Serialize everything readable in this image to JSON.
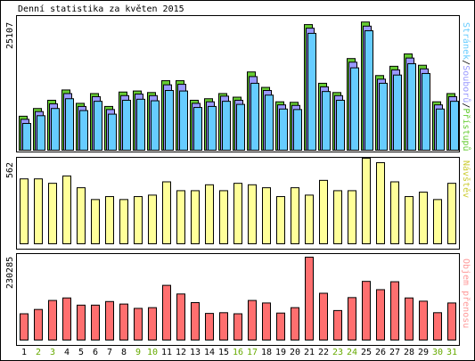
{
  "title": "Denní statistika za květen 2015",
  "colors": {
    "background": "#ffffff",
    "border": "#000000",
    "pages": "#66ccff",
    "files": "#9999ff",
    "hits": "#66cc33",
    "visits": "#ffff99",
    "bandwidth": "#ff6f6f",
    "weekday_label": "#000000",
    "weekend_label": "#66aa00"
  },
  "panels": {
    "top": {
      "max_label": "25107",
      "legend": [
        {
          "text": "Stránek",
          "color": "#66ccff"
        },
        {
          "text": "/",
          "color": "#000000"
        },
        {
          "text": "Souborů",
          "color": "#9999ff"
        },
        {
          "text": "/",
          "color": "#000000"
        },
        {
          "text": "Přístupů",
          "color": "#66cc33"
        }
      ]
    },
    "middle": {
      "max_label": "562",
      "legend": [
        {
          "text": "Návštěv",
          "color": "#cccc33"
        }
      ]
    },
    "bottom": {
      "max_label": "230285",
      "legend": [
        {
          "text": "Objem přenosu",
          "color": "#ff9999"
        }
      ]
    }
  },
  "chart_data": {
    "type": "bar",
    "title": "Denní statistika za květen 2015",
    "categories": [
      "1",
      "2",
      "3",
      "4",
      "5",
      "6",
      "7",
      "8",
      "9",
      "10",
      "11",
      "12",
      "13",
      "14",
      "15",
      "16",
      "17",
      "18",
      "19",
      "20",
      "21",
      "22",
      "23",
      "24",
      "25",
      "26",
      "27",
      "28",
      "29",
      "30",
      "31"
    ],
    "weekend_days": [
      "2",
      "3",
      "9",
      "10",
      "16",
      "17",
      "23",
      "24",
      "30",
      "31"
    ],
    "series": [
      {
        "name": "Přístupů",
        "panel": "top",
        "ymax": 25107,
        "values": [
          6600,
          8100,
          9700,
          11700,
          9100,
          11000,
          8500,
          11300,
          11500,
          11200,
          13500,
          13500,
          9700,
          10000,
          11000,
          10300,
          15200,
          12200,
          9400,
          9300,
          24400,
          13000,
          11200,
          17800,
          24900,
          14500,
          16300,
          18700,
          16500,
          9400,
          11000
        ]
      },
      {
        "name": "Souborů",
        "panel": "top",
        "ymax": 25107,
        "values": [
          6000,
          7500,
          9000,
          11000,
          8500,
          10400,
          7900,
          10600,
          10900,
          10600,
          12700,
          12800,
          9100,
          9400,
          10500,
          9700,
          14300,
          11600,
          8800,
          8700,
          23700,
          12300,
          10600,
          17100,
          24100,
          13800,
          15600,
          17900,
          15800,
          8800,
          10400
        ]
      },
      {
        "name": "Stránek",
        "panel": "top",
        "ymax": 25107,
        "values": [
          5200,
          6700,
          8100,
          10000,
          7700,
          9500,
          7000,
          9700,
          9900,
          9600,
          11600,
          11500,
          8300,
          8500,
          9500,
          8900,
          13000,
          10700,
          8000,
          7900,
          22700,
          11400,
          9700,
          16000,
          23200,
          13000,
          14600,
          16800,
          14900,
          8000,
          9500
        ]
      },
      {
        "name": "Návštěv",
        "panel": "middle",
        "ymax": 562,
        "values": [
          440,
          440,
          410,
          460,
          380,
          300,
          320,
          300,
          320,
          330,
          420,
          360,
          360,
          400,
          360,
          410,
          400,
          380,
          320,
          380,
          330,
          430,
          360,
          360,
          580,
          550,
          420,
          320,
          350,
          300,
          410
        ]
      },
      {
        "name": "Objem přenosu",
        "panel": "bottom",
        "ymax": 230285,
        "values": [
          73000,
          85000,
          110000,
          117000,
          97000,
          97000,
          107000,
          100000,
          88000,
          90000,
          152000,
          128000,
          104000,
          74000,
          76000,
          73000,
          110000,
          103000,
          75000,
          90000,
          230285,
          130000,
          82000,
          118000,
          163000,
          140000,
          162000,
          117000,
          108000,
          76000,
          103000
        ]
      }
    ]
  }
}
